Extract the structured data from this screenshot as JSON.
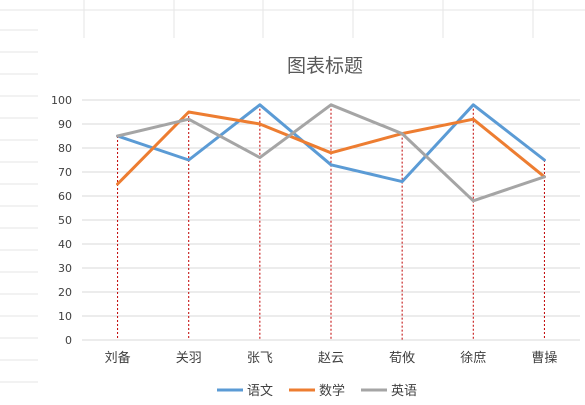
{
  "chart_data": {
    "type": "line",
    "title": "图表标题",
    "categories": [
      "刘备",
      "关羽",
      "张飞",
      "赵云",
      "荀攸",
      "徐庶",
      "曹操"
    ],
    "ylim": [
      0,
      100
    ],
    "yticks": [
      0,
      10,
      20,
      30,
      40,
      50,
      60,
      70,
      80,
      90,
      100
    ],
    "grid": true,
    "drop_lines": true,
    "legend_position": "bottom",
    "series": [
      {
        "name": "语文",
        "color": "#5b9bd5",
        "values": [
          85,
          75,
          98,
          73,
          66,
          98,
          75
        ]
      },
      {
        "name": "数学",
        "color": "#ed7d31",
        "values": [
          65,
          95,
          90,
          78,
          86,
          92,
          68
        ]
      },
      {
        "name": "英语",
        "color": "#a5a5a5",
        "values": [
          85,
          92,
          76,
          98,
          86,
          58,
          68
        ]
      }
    ]
  },
  "colors": {
    "gridline": "#d9d9d9",
    "drop_line": "#c00000",
    "sheet_grid": "#e6e6e6"
  }
}
